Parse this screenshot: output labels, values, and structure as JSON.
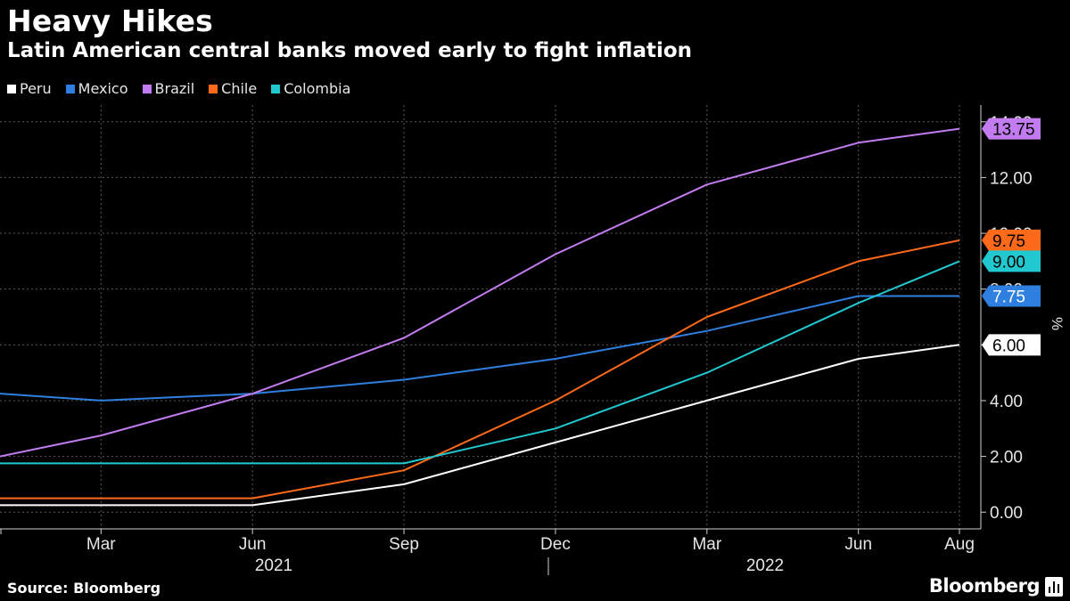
{
  "title": "Heavy Hikes",
  "subtitle": "Latin American central banks moved early to fight inflation",
  "source": "Source: Bloomberg",
  "brand": "Bloomberg",
  "chart_data": {
    "type": "line",
    "x": [
      "2021-01",
      "2021-03",
      "2021-06",
      "2021-09",
      "2021-12",
      "2022-03",
      "2022-06",
      "2022-08"
    ],
    "x_tick_labels": [
      "Mar",
      "Jun",
      "Sep",
      "Dec",
      "Mar",
      "Jun",
      "Aug"
    ],
    "x_year_labels": [
      "2021",
      "2022"
    ],
    "ylabel": "%",
    "ylim": [
      -0.6,
      14.6
    ],
    "y_ticks": [
      0,
      2,
      4,
      6,
      8,
      10,
      12,
      14
    ],
    "y_tick_labels": [
      "0.00",
      "2.00",
      "4.00",
      "6.00",
      "8.00",
      "10.00",
      "12.00",
      "14.00"
    ],
    "grid": true,
    "legend_position": "top-left",
    "series": [
      {
        "name": "Peru",
        "color": "#ffffff",
        "label_text_color": "#000000",
        "values": [
          0.25,
          0.25,
          0.25,
          1.0,
          2.5,
          4.0,
          5.5,
          6.0
        ],
        "end_label": "6.00"
      },
      {
        "name": "Mexico",
        "color": "#2f7fe0",
        "label_text_color": "#ffffff",
        "values": [
          4.25,
          4.0,
          4.25,
          4.75,
          5.5,
          6.5,
          7.75,
          7.75
        ],
        "end_label": "7.75"
      },
      {
        "name": "Brazil",
        "color": "#c27cf0",
        "label_text_color": "#000000",
        "values": [
          2.0,
          2.75,
          4.25,
          6.25,
          9.25,
          11.75,
          13.25,
          13.75
        ],
        "end_label": "13.75"
      },
      {
        "name": "Chile",
        "color": "#ff6a1a",
        "label_text_color": "#000000",
        "values": [
          0.5,
          0.5,
          0.5,
          1.5,
          4.0,
          7.0,
          9.0,
          9.75
        ],
        "end_label": "9.75"
      },
      {
        "name": "Colombia",
        "color": "#22c8d0",
        "label_text_color": "#000000",
        "values": [
          1.75,
          1.75,
          1.75,
          1.75,
          3.0,
          5.0,
          7.5,
          9.0
        ],
        "end_label": "9.00"
      }
    ]
  }
}
